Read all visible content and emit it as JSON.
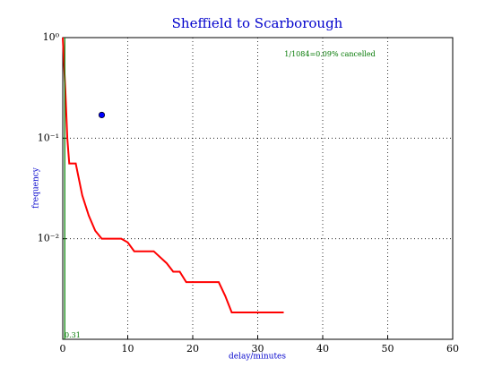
{
  "chart_data": {
    "type": "line",
    "title": "Sheffield to Scarborough",
    "x_label": "delay/minutes",
    "y_label": "frequency",
    "annotations": [
      "1/1084=0.09% cancelled",
      "0.31"
    ],
    "log_y": true,
    "grid": true,
    "xlim": [
      0,
      60
    ],
    "xticks": [
      0,
      10,
      20,
      30,
      40,
      50,
      60
    ],
    "ylim": [
      0.001,
      1
    ],
    "yticks": [
      {
        "value": 1,
        "label": "10⁰"
      },
      {
        "value": 0.1,
        "label": "10⁻¹"
      },
      {
        "value": 0.01,
        "label": "10⁻²"
      }
    ],
    "series": [
      {
        "style": "line",
        "color": "#ff0000",
        "x": [
          0,
          0.4,
          0.7,
          1,
          2,
          3,
          4,
          5,
          6,
          9,
          10,
          11,
          14,
          16,
          17,
          18,
          19,
          24,
          25,
          26,
          34
        ],
        "values": [
          1,
          0.3,
          0.1,
          0.056,
          0.056,
          0.027,
          0.017,
          0.012,
          0.01,
          0.01,
          0.0092,
          0.0075,
          0.0075,
          0.0057,
          0.0047,
          0.0047,
          0.0037,
          0.0037,
          0.0027,
          0.00185,
          0.00185
        ]
      },
      {
        "style": "line",
        "color": "#008000",
        "x": [
          0.31,
          0.31
        ],
        "values": [
          0.001,
          1
        ]
      },
      {
        "style": "marker",
        "color": "#0000ff",
        "x": [
          6
        ],
        "values": [
          0.17
        ]
      }
    ]
  }
}
